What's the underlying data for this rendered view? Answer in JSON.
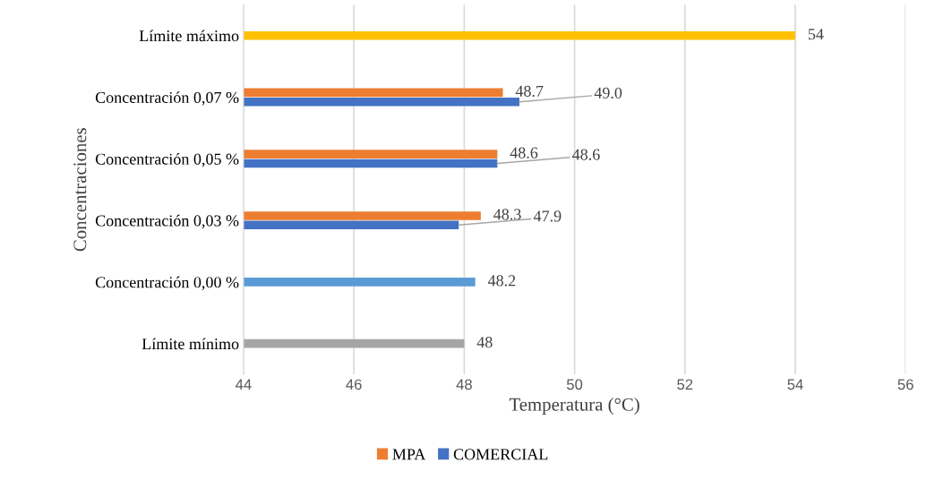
{
  "chart_data": {
    "type": "bar",
    "orientation": "horizontal",
    "xlabel": "Temperatura (°C)",
    "ylabel": "Concentraciones",
    "categories": [
      "Límite máximo",
      "Concentración 0,07 %",
      "Concentración 0,05 %",
      "Concentración 0,03 %",
      "Concentración 0,00 %",
      "Límite mínimo"
    ],
    "series": [
      {
        "name": "MPA",
        "color": "#ed7d31",
        "values": [
          null,
          48.7,
          48.6,
          48.3,
          null,
          null
        ],
        "value_labels": [
          null,
          "48.7",
          "48.6",
          "48.3",
          null,
          null
        ]
      },
      {
        "name": "COMERCIAL",
        "color": "#4472c4",
        "values": [
          null,
          49.0,
          48.6,
          47.9,
          null,
          null
        ],
        "value_labels": [
          null,
          "49.0",
          "48.6",
          "47.9",
          null,
          null
        ]
      },
      {
        "colors": [
          "#ffc000",
          null,
          null,
          null,
          "#5b9bd5",
          "#a5a5a5"
        ],
        "values": [
          54,
          null,
          null,
          null,
          48.2,
          48
        ],
        "value_labels": [
          "54",
          null,
          null,
          null,
          "48.2",
          "48"
        ]
      }
    ],
    "xlim": [
      44,
      56
    ],
    "xticks": [
      44,
      46,
      48,
      50,
      52,
      54,
      56
    ],
    "grid": "x",
    "legend": "bottom"
  }
}
